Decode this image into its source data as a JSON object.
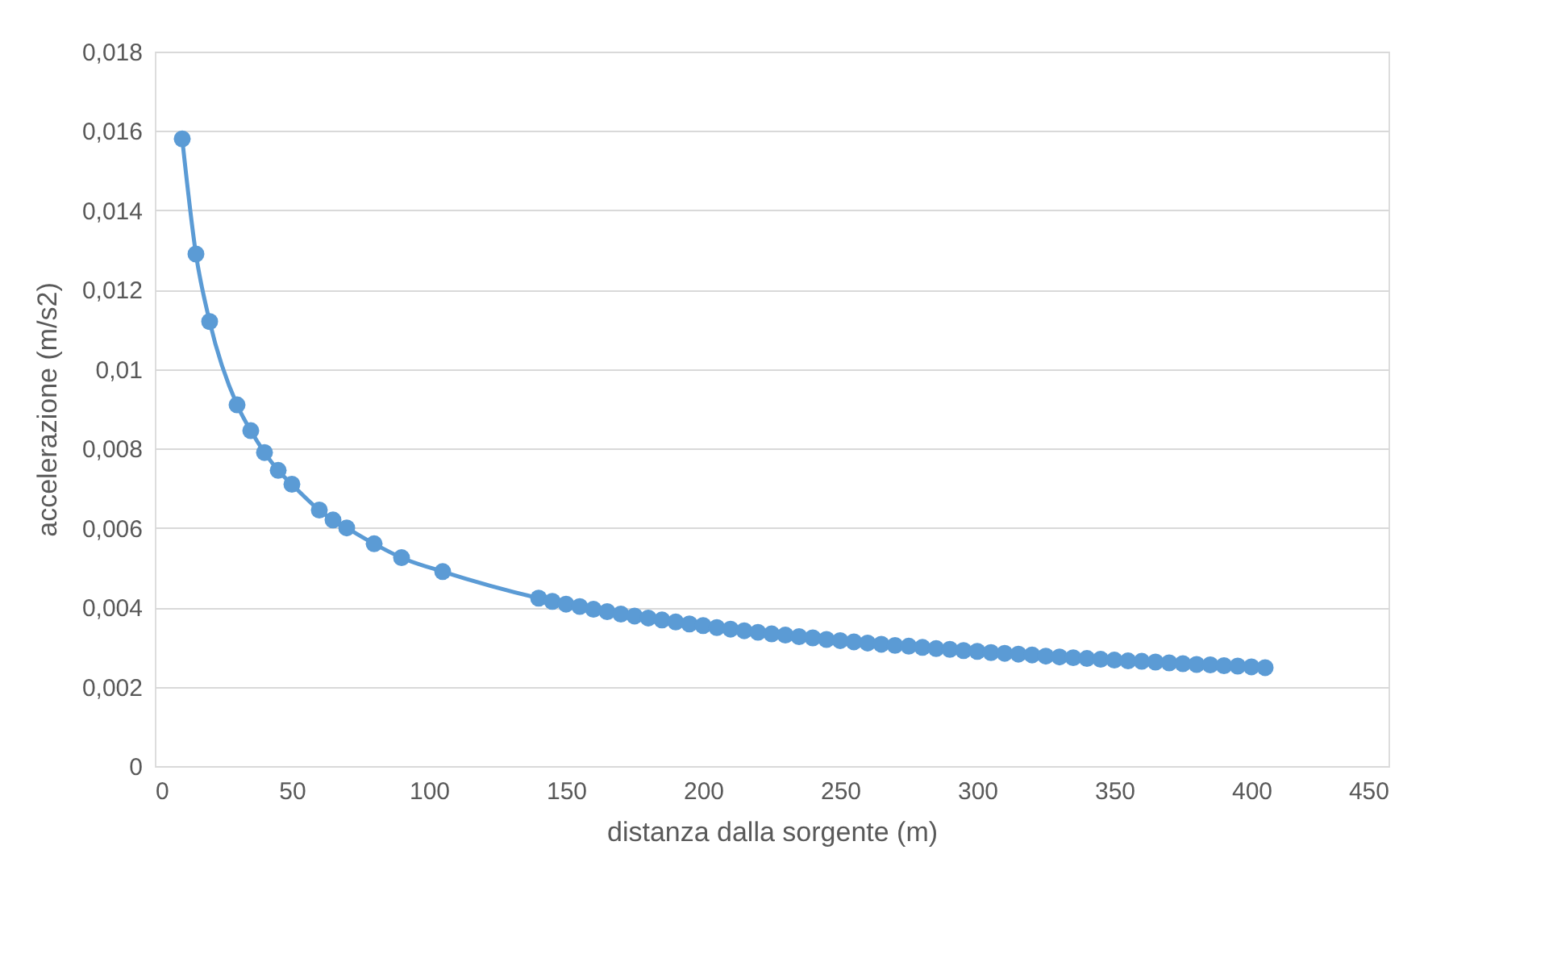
{
  "chart_data": {
    "type": "line",
    "xlabel": "distanza dalla sorgente (m)",
    "ylabel": "accelerazione (m/s2)",
    "x": [
      10,
      15,
      20,
      30,
      35,
      40,
      45,
      50,
      60,
      65,
      70,
      80,
      90,
      105,
      140,
      145,
      150,
      155,
      160,
      165,
      170,
      175,
      180,
      185,
      190,
      195,
      200,
      205,
      210,
      215,
      220,
      225,
      230,
      235,
      240,
      245,
      250,
      255,
      260,
      265,
      270,
      275,
      280,
      285,
      290,
      295,
      300,
      305,
      310,
      315,
      320,
      325,
      330,
      335,
      340,
      345,
      350,
      355,
      360,
      365,
      370,
      375,
      380,
      385,
      390,
      395,
      400,
      405
    ],
    "series": [
      {
        "color": "#5b9bd5",
        "values": [
          0.0158,
          0.0129,
          0.0112,
          0.0091,
          0.00845,
          0.0079,
          0.00745,
          0.0071,
          0.00645,
          0.0062,
          0.006,
          0.0056,
          0.00525,
          0.0049,
          0.00423,
          0.00415,
          0.00408,
          0.00402,
          0.00395,
          0.00389,
          0.00383,
          0.00378,
          0.00373,
          0.00368,
          0.00363,
          0.00358,
          0.00354,
          0.00349,
          0.00345,
          0.00341,
          0.00337,
          0.00333,
          0.0033,
          0.00326,
          0.00323,
          0.00319,
          0.00316,
          0.00313,
          0.0031,
          0.00307,
          0.00304,
          0.00302,
          0.00299,
          0.00296,
          0.00294,
          0.00291,
          0.00289,
          0.00286,
          0.00284,
          0.00282,
          0.0028,
          0.00277,
          0.00275,
          0.00273,
          0.00271,
          0.00269,
          0.00267,
          0.00265,
          0.00264,
          0.00262,
          0.0026,
          0.00258,
          0.00256,
          0.00255,
          0.00253,
          0.00252,
          0.0025,
          0.00248
        ]
      }
    ],
    "xlim": [
      0,
      450
    ],
    "xticks": [
      0,
      50,
      100,
      150,
      200,
      250,
      300,
      350,
      400,
      450
    ],
    "ylim": [
      0,
      0.018
    ],
    "yticks": [
      0,
      {
        "value": 0.002,
        "label": "0,002"
      },
      {
        "value": 0.004,
        "label": "0,004"
      },
      {
        "value": 0.006,
        "label": "0,006"
      },
      {
        "value": 0.008,
        "label": "0,008"
      },
      {
        "value": 0.01,
        "label": "0,01"
      },
      {
        "value": 0.012,
        "label": "0,012"
      },
      {
        "value": 0.014,
        "label": "0,014"
      },
      {
        "value": 0.016,
        "label": "0,016"
      },
      {
        "value": 0.018,
        "label": "0,018"
      }
    ],
    "grid": "y",
    "marker": "circle",
    "line_style": "solid",
    "legend": false
  }
}
